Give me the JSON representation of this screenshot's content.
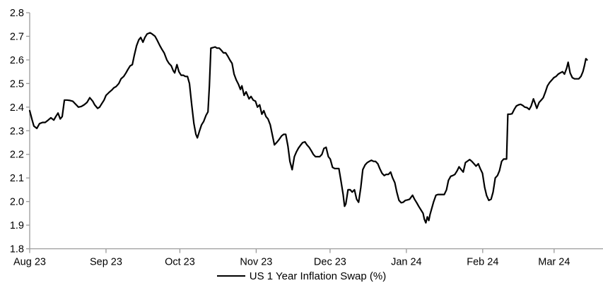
{
  "chart_data": {
    "type": "line",
    "title": "",
    "legend": "US 1 Year Inflation Swap (%)",
    "line_color": "#000000",
    "axis_color": "#9a9a9a",
    "label_color": "#000000",
    "grid": false,
    "legend_position": "bottom-center",
    "y_axis": {
      "min": 1.8,
      "max": 2.8,
      "tick_step": 0.1,
      "tick_labels": [
        "1.8",
        "1.9",
        "2.0",
        "2.1",
        "2.2",
        "2.3",
        "2.4",
        "2.5",
        "2.6",
        "2.7",
        "2.8"
      ]
    },
    "x_axis": {
      "unit": "days since 2023-08-01",
      "range_days": 232,
      "ticks": [
        {
          "label": "Aug 23",
          "day": 0
        },
        {
          "label": "Sep 23",
          "day": 31
        },
        {
          "label": "Oct 23",
          "day": 61
        },
        {
          "label": "Nov 23",
          "day": 92
        },
        {
          "label": "Dec 23",
          "day": 122
        },
        {
          "label": "Jan 24",
          "day": 153
        },
        {
          "label": "Feb 24",
          "day": 184
        },
        {
          "label": "Mar 24",
          "day": 213
        }
      ]
    },
    "series": [
      {
        "name": "US 1 Year Inflation Swap (%)",
        "points": [
          [
            0,
            2.385
          ],
          [
            1,
            2.345
          ],
          [
            1.7,
            2.32
          ],
          [
            2.9,
            2.31
          ],
          [
            4,
            2.33
          ],
          [
            5.2,
            2.335
          ],
          [
            6.3,
            2.335
          ],
          [
            7.5,
            2.345
          ],
          [
            8.6,
            2.355
          ],
          [
            9.8,
            2.345
          ],
          [
            10.6,
            2.36
          ],
          [
            11.5,
            2.375
          ],
          [
            12.4,
            2.35
          ],
          [
            13.2,
            2.36
          ],
          [
            14.1,
            2.43
          ],
          [
            15.2,
            2.43
          ],
          [
            16.4,
            2.428
          ],
          [
            17.5,
            2.425
          ],
          [
            18.7,
            2.412
          ],
          [
            19.8,
            2.4
          ],
          [
            21,
            2.403
          ],
          [
            22.1,
            2.41
          ],
          [
            23.3,
            2.42
          ],
          [
            24.4,
            2.44
          ],
          [
            25.6,
            2.425
          ],
          [
            26.4,
            2.41
          ],
          [
            27.6,
            2.395
          ],
          [
            28.4,
            2.4
          ],
          [
            29.3,
            2.415
          ],
          [
            30.2,
            2.43
          ],
          [
            31,
            2.45
          ],
          [
            32.2,
            2.462
          ],
          [
            33.3,
            2.472
          ],
          [
            34.2,
            2.482
          ],
          [
            35.1,
            2.487
          ],
          [
            36.2,
            2.5
          ],
          [
            37.1,
            2.52
          ],
          [
            38.2,
            2.53
          ],
          [
            39.1,
            2.545
          ],
          [
            39.9,
            2.56
          ],
          [
            40.8,
            2.575
          ],
          [
            41.7,
            2.58
          ],
          [
            42.5,
            2.62
          ],
          [
            43.4,
            2.66
          ],
          [
            44.3,
            2.685
          ],
          [
            45.1,
            2.695
          ],
          [
            46,
            2.675
          ],
          [
            46.8,
            2.695
          ],
          [
            47.7,
            2.71
          ],
          [
            48.9,
            2.715
          ],
          [
            49.7,
            2.71
          ],
          [
            50.9,
            2.7
          ],
          [
            51.7,
            2.685
          ],
          [
            52.9,
            2.66
          ],
          [
            53.7,
            2.645
          ],
          [
            54.6,
            2.63
          ],
          [
            55.7,
            2.6
          ],
          [
            56.6,
            2.585
          ],
          [
            57.5,
            2.575
          ],
          [
            58.3,
            2.555
          ],
          [
            58.9,
            2.545
          ],
          [
            59.8,
            2.58
          ],
          [
            60.6,
            2.55
          ],
          [
            61.5,
            2.535
          ],
          [
            62.4,
            2.535
          ],
          [
            63.2,
            2.53
          ],
          [
            64.1,
            2.53
          ],
          [
            64.9,
            2.5
          ],
          [
            65.8,
            2.41
          ],
          [
            66.7,
            2.33
          ],
          [
            67.5,
            2.285
          ],
          [
            68.1,
            2.27
          ],
          [
            69,
            2.3
          ],
          [
            69.8,
            2.325
          ],
          [
            70.7,
            2.34
          ],
          [
            71.6,
            2.365
          ],
          [
            72.4,
            2.38
          ],
          [
            73,
            2.49
          ],
          [
            73.6,
            2.65
          ],
          [
            74.4,
            2.652
          ],
          [
            75.3,
            2.655
          ],
          [
            76.1,
            2.65
          ],
          [
            77,
            2.65
          ],
          [
            77.9,
            2.64
          ],
          [
            78.7,
            2.63
          ],
          [
            79.6,
            2.63
          ],
          [
            80.5,
            2.615
          ],
          [
            81.3,
            2.6
          ],
          [
            82.2,
            2.585
          ],
          [
            83,
            2.54
          ],
          [
            83.9,
            2.515
          ],
          [
            84.8,
            2.497
          ],
          [
            85.6,
            2.475
          ],
          [
            86.2,
            2.49
          ],
          [
            87.1,
            2.45
          ],
          [
            87.9,
            2.465
          ],
          [
            89.1,
            2.435
          ],
          [
            89.9,
            2.445
          ],
          [
            90.8,
            2.43
          ],
          [
            91.7,
            2.425
          ],
          [
            92.5,
            2.4
          ],
          [
            93.4,
            2.41
          ],
          [
            94.3,
            2.37
          ],
          [
            95.1,
            2.385
          ],
          [
            96,
            2.36
          ],
          [
            96.8,
            2.35
          ],
          [
            97.7,
            2.325
          ],
          [
            98.6,
            2.28
          ],
          [
            99.4,
            2.24
          ],
          [
            100.3,
            2.25
          ],
          [
            101.1,
            2.26
          ],
          [
            102.3,
            2.278
          ],
          [
            103.2,
            2.285
          ],
          [
            104,
            2.285
          ],
          [
            104.9,
            2.235
          ],
          [
            105.7,
            2.17
          ],
          [
            106.6,
            2.135
          ],
          [
            107.5,
            2.19
          ],
          [
            108.3,
            2.21
          ],
          [
            109.2,
            2.227
          ],
          [
            110.1,
            2.24
          ],
          [
            110.9,
            2.25
          ],
          [
            111.8,
            2.253
          ],
          [
            112.6,
            2.24
          ],
          [
            113.5,
            2.23
          ],
          [
            114.4,
            2.215
          ],
          [
            115.2,
            2.2
          ],
          [
            116.1,
            2.19
          ],
          [
            116.9,
            2.19
          ],
          [
            117.8,
            2.19
          ],
          [
            118.7,
            2.2
          ],
          [
            119.5,
            2.225
          ],
          [
            120.4,
            2.23
          ],
          [
            121.3,
            2.19
          ],
          [
            122.1,
            2.18
          ],
          [
            123,
            2.145
          ],
          [
            123.9,
            2.14
          ],
          [
            124.7,
            2.14
          ],
          [
            125.6,
            2.14
          ],
          [
            126.4,
            2.09
          ],
          [
            127.3,
            2.03
          ],
          [
            127.9,
            1.98
          ],
          [
            128.4,
            1.99
          ],
          [
            129.3,
            2.05
          ],
          [
            130.2,
            2.05
          ],
          [
            131,
            2.04
          ],
          [
            131.9,
            2.05
          ],
          [
            132.8,
            2.01
          ],
          [
            133.6,
            1.997
          ],
          [
            134.5,
            2.06
          ],
          [
            135.3,
            2.135
          ],
          [
            136.2,
            2.155
          ],
          [
            137.1,
            2.165
          ],
          [
            137.9,
            2.17
          ],
          [
            138.8,
            2.175
          ],
          [
            139.7,
            2.17
          ],
          [
            140.5,
            2.17
          ],
          [
            141.4,
            2.16
          ],
          [
            142.2,
            2.14
          ],
          [
            143.1,
            2.12
          ],
          [
            144,
            2.11
          ],
          [
            144.8,
            2.115
          ],
          [
            145.7,
            2.115
          ],
          [
            146.6,
            2.125
          ],
          [
            147.4,
            2.1
          ],
          [
            148.3,
            2.08
          ],
          [
            149.1,
            2.04
          ],
          [
            150,
            2.005
          ],
          [
            150.9,
            1.995
          ],
          [
            151.7,
            1.997
          ],
          [
            152.6,
            2.005
          ],
          [
            153.4,
            2.007
          ],
          [
            154.3,
            2.01
          ],
          [
            155.5,
            2.027
          ],
          [
            156.3,
            2.01
          ],
          [
            157.2,
            1.995
          ],
          [
            158,
            1.98
          ],
          [
            158.9,
            1.965
          ],
          [
            159.8,
            1.95
          ],
          [
            160.3,
            1.925
          ],
          [
            160.9,
            1.91
          ],
          [
            161.5,
            1.935
          ],
          [
            162.1,
            1.92
          ],
          [
            162.6,
            1.945
          ],
          [
            163.2,
            1.967
          ],
          [
            164.1,
            2
          ],
          [
            165,
            2.027
          ],
          [
            165.8,
            2.03
          ],
          [
            166.7,
            2.03
          ],
          [
            167.5,
            2.03
          ],
          [
            168.4,
            2.03
          ],
          [
            169.3,
            2.05
          ],
          [
            170.1,
            2.09
          ],
          [
            171,
            2.107
          ],
          [
            171.8,
            2.11
          ],
          [
            172.7,
            2.115
          ],
          [
            173.6,
            2.13
          ],
          [
            174.4,
            2.147
          ],
          [
            175.3,
            2.135
          ],
          [
            176.1,
            2.125
          ],
          [
            177,
            2.165
          ],
          [
            177.9,
            2.172
          ],
          [
            178.7,
            2.178
          ],
          [
            179.6,
            2.17
          ],
          [
            180.5,
            2.16
          ],
          [
            181.3,
            2.15
          ],
          [
            182.2,
            2.16
          ],
          [
            183,
            2.14
          ],
          [
            183.9,
            2.12
          ],
          [
            184.8,
            2.06
          ],
          [
            185.6,
            2.025
          ],
          [
            186.5,
            2.005
          ],
          [
            187.4,
            2.01
          ],
          [
            188.2,
            2.04
          ],
          [
            189.1,
            2.1
          ],
          [
            190,
            2.11
          ],
          [
            190.8,
            2.13
          ],
          [
            191.7,
            2.17
          ],
          [
            192.5,
            2.18
          ],
          [
            193.4,
            2.18
          ],
          [
            193.7,
            2.18
          ],
          [
            194.2,
            2.37
          ],
          [
            195.1,
            2.37
          ],
          [
            195.9,
            2.372
          ],
          [
            196.8,
            2.39
          ],
          [
            197.7,
            2.405
          ],
          [
            198.6,
            2.41
          ],
          [
            199.4,
            2.412
          ],
          [
            200.3,
            2.407
          ],
          [
            201.1,
            2.4
          ],
          [
            202,
            2.398
          ],
          [
            202.9,
            2.39
          ],
          [
            203.7,
            2.405
          ],
          [
            204.6,
            2.435
          ],
          [
            205.5,
            2.41
          ],
          [
            206,
            2.395
          ],
          [
            206.9,
            2.42
          ],
          [
            207.8,
            2.43
          ],
          [
            208.6,
            2.44
          ],
          [
            209.5,
            2.465
          ],
          [
            210.3,
            2.49
          ],
          [
            211.2,
            2.505
          ],
          [
            212.1,
            2.515
          ],
          [
            212.9,
            2.525
          ],
          [
            213.8,
            2.53
          ],
          [
            214.7,
            2.54
          ],
          [
            215.5,
            2.545
          ],
          [
            216.4,
            2.55
          ],
          [
            217.2,
            2.54
          ],
          [
            218.1,
            2.565
          ],
          [
            218.7,
            2.59
          ],
          [
            219.5,
            2.545
          ],
          [
            220.4,
            2.525
          ],
          [
            221.3,
            2.52
          ],
          [
            222.1,
            2.52
          ],
          [
            223,
            2.52
          ],
          [
            223.9,
            2.53
          ],
          [
            224.7,
            2.55
          ],
          [
            225.3,
            2.575
          ],
          [
            225.9,
            2.605
          ],
          [
            226.4,
            2.6
          ]
        ]
      }
    ]
  }
}
